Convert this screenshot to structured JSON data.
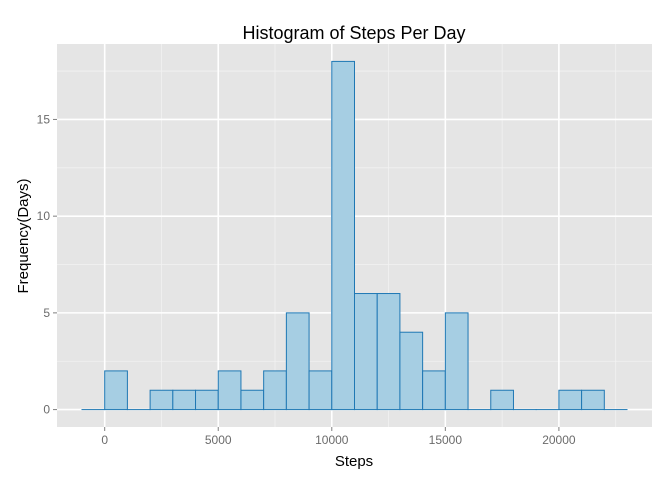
{
  "chart_data": {
    "type": "bar",
    "title": "Histogram of Steps Per Day",
    "xlabel": "Steps",
    "ylabel": "Frequency(Days)",
    "bin_width": 1000,
    "bins": [
      {
        "start": -1000,
        "end": 0,
        "count": 0
      },
      {
        "start": 0,
        "end": 1000,
        "count": 2
      },
      {
        "start": 1000,
        "end": 2000,
        "count": 0
      },
      {
        "start": 2000,
        "end": 3000,
        "count": 1
      },
      {
        "start": 3000,
        "end": 4000,
        "count": 1
      },
      {
        "start": 4000,
        "end": 5000,
        "count": 1
      },
      {
        "start": 5000,
        "end": 6000,
        "count": 2
      },
      {
        "start": 6000,
        "end": 7000,
        "count": 1
      },
      {
        "start": 7000,
        "end": 8000,
        "count": 2
      },
      {
        "start": 8000,
        "end": 9000,
        "count": 5
      },
      {
        "start": 9000,
        "end": 10000,
        "count": 2
      },
      {
        "start": 10000,
        "end": 11000,
        "count": 18
      },
      {
        "start": 11000,
        "end": 12000,
        "count": 6
      },
      {
        "start": 12000,
        "end": 13000,
        "count": 6
      },
      {
        "start": 13000,
        "end": 14000,
        "count": 4
      },
      {
        "start": 14000,
        "end": 15000,
        "count": 2
      },
      {
        "start": 15000,
        "end": 16000,
        "count": 5
      },
      {
        "start": 16000,
        "end": 17000,
        "count": 0
      },
      {
        "start": 17000,
        "end": 18000,
        "count": 1
      },
      {
        "start": 18000,
        "end": 19000,
        "count": 0
      },
      {
        "start": 19000,
        "end": 20000,
        "count": 0
      },
      {
        "start": 20000,
        "end": 21000,
        "count": 1
      },
      {
        "start": 21000,
        "end": 22000,
        "count": 1
      },
      {
        "start": 22000,
        "end": 23000,
        "count": 0
      }
    ],
    "xlim": [
      -2100,
      24100
    ],
    "ylim": [
      -0.9,
      18.9
    ],
    "x_ticks": [
      0,
      5000,
      10000,
      15000,
      20000
    ],
    "x_tick_labels": [
      "0",
      "5000",
      "10000",
      "15000",
      "20000"
    ],
    "y_ticks": [
      0,
      5,
      10,
      15
    ],
    "y_tick_labels": [
      "0",
      "5",
      "10",
      "15"
    ],
    "grid": true,
    "legend": "none",
    "colors": {
      "panel_background": "#e5e5e5",
      "grid_major": "#ffffff",
      "grid_minor": "#f2f2f2",
      "bar_fill": "#a6cee3",
      "bar_outline": "#1f78b4",
      "tick_text": "#6b6b6b"
    }
  }
}
